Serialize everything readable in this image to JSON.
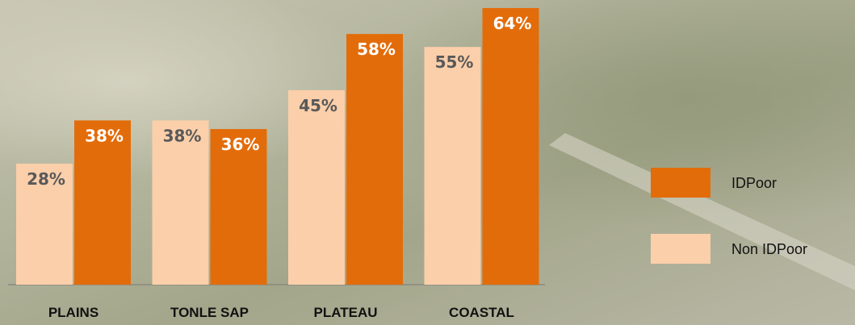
{
  "chart_data": {
    "type": "bar",
    "categories": [
      "PLAINS",
      "TONLE SAP",
      "PLATEAU",
      "COASTAL"
    ],
    "series": [
      {
        "name": "Non IDPoor",
        "color": "#fbcfaa",
        "values": [
          28,
          38,
          45,
          55
        ],
        "value_labels": [
          "28%",
          "38%",
          "45%",
          "55%"
        ]
      },
      {
        "name": "IDPoor",
        "color": "#e36c0a",
        "values": [
          38,
          36,
          58,
          64
        ],
        "value_labels": [
          "38%",
          "36%",
          "58%",
          "64%"
        ]
      }
    ]
  }
}
